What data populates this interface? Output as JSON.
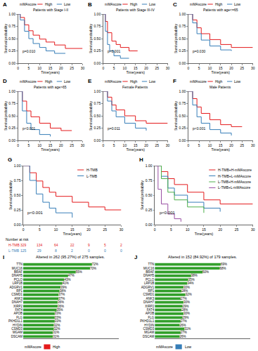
{
  "chart_data": [
    {
      "panel": "A",
      "type": "line",
      "title": "Patients with Stage I-II",
      "x_label": "Time(years)",
      "y_label": "Survival probability",
      "legend_title": "mMAscore",
      "legend": "top",
      "p_value": "p=0.010",
      "grid": false,
      "xlim": [
        0,
        30
      ],
      "xticks": [
        0,
        5,
        10,
        15,
        20,
        25,
        30
      ],
      "ylim": [
        0,
        1
      ],
      "yticks": [
        {
          "value": 0,
          "label": "0.00"
        },
        {
          "value": 0.25,
          "label": "0.25"
        },
        {
          "value": 0.5,
          "label": "0.50"
        },
        {
          "value": 0.75,
          "label": "0.75"
        },
        {
          "value": 1,
          "label": "1.00"
        }
      ],
      "series": [
        {
          "name": "High",
          "color": "#e41a1c",
          "line_style": "step",
          "x": [
            0,
            1,
            3,
            5,
            7,
            10,
            13,
            17,
            22,
            30
          ],
          "values": [
            1,
            0.93,
            0.78,
            0.66,
            0.57,
            0.49,
            0.43,
            0.37,
            0.3,
            0.3
          ]
        },
        {
          "name": "Low",
          "color": "#377eb8",
          "line_style": "step",
          "x": [
            0,
            1,
            3,
            5,
            7,
            10,
            13,
            17,
            22
          ],
          "values": [
            1,
            0.88,
            0.65,
            0.5,
            0.4,
            0.32,
            0.25,
            0.2,
            0.2
          ]
        }
      ]
    },
    {
      "panel": "B",
      "type": "line",
      "title": "Patients with Stage III-IV",
      "x_label": "Time(years)",
      "y_label": "Survival probability",
      "legend_title": "mMAscore",
      "legend": "top",
      "p_value": "p<0.001",
      "grid": false,
      "xlim": [
        0,
        30
      ],
      "xticks": [
        0,
        5,
        10,
        15,
        20,
        25,
        30
      ],
      "ylim": [
        0,
        1
      ],
      "yticks": [
        {
          "value": 0,
          "label": "0.00"
        },
        {
          "value": 0.25,
          "label": "0.25"
        },
        {
          "value": 0.5,
          "label": "0.50"
        },
        {
          "value": 0.75,
          "label": "0.75"
        },
        {
          "value": 1,
          "label": "1.00"
        }
      ],
      "series": [
        {
          "name": "High",
          "color": "#e41a1c",
          "line_style": "step",
          "x": [
            0,
            1,
            2,
            4,
            6,
            8,
            12,
            16
          ],
          "values": [
            1,
            0.85,
            0.62,
            0.45,
            0.38,
            0.32,
            0.25,
            0.25
          ]
        },
        {
          "name": "Low",
          "color": "#377eb8",
          "line_style": "step",
          "x": [
            0,
            1,
            2,
            3,
            5,
            8,
            12
          ],
          "values": [
            1,
            0.65,
            0.38,
            0.25,
            0.15,
            0.1,
            0.1
          ]
        }
      ]
    },
    {
      "panel": "C",
      "type": "line",
      "title": "Patients with age<=65",
      "x_label": "Time(years)",
      "y_label": "Survival probability",
      "legend_title": "mMAscore",
      "legend": "top",
      "p_value": "p=0.030",
      "grid": false,
      "xlim": [
        0,
        30
      ],
      "xticks": [
        0,
        5,
        10,
        15,
        20,
        25,
        30
      ],
      "ylim": [
        0,
        1
      ],
      "yticks": [
        {
          "value": 0,
          "label": "0.00"
        },
        {
          "value": 0.25,
          "label": "0.25"
        },
        {
          "value": 0.5,
          "label": "0.50"
        },
        {
          "value": 0.75,
          "label": "0.75"
        },
        {
          "value": 1,
          "label": "1.00"
        }
      ],
      "series": [
        {
          "name": "High",
          "color": "#e41a1c",
          "line_style": "step",
          "x": [
            0,
            2,
            4,
            6,
            10,
            15,
            20,
            30
          ],
          "values": [
            1,
            0.88,
            0.72,
            0.6,
            0.48,
            0.38,
            0.32,
            0.32
          ]
        },
        {
          "name": "Low",
          "color": "#377eb8",
          "line_style": "step",
          "x": [
            0,
            2,
            4,
            6,
            10,
            15,
            20
          ],
          "values": [
            1,
            0.82,
            0.6,
            0.47,
            0.35,
            0.27,
            0.25
          ]
        }
      ]
    },
    {
      "panel": "D",
      "type": "line",
      "title": "Patients with age>65",
      "x_label": "Time(years)",
      "y_label": "Survival probability",
      "legend_title": "mMAscore",
      "legend": "top",
      "p_value": "p<0.001",
      "grid": false,
      "xlim": [
        0,
        30
      ],
      "xticks": [
        0,
        5,
        10,
        15,
        20,
        25,
        30
      ],
      "ylim": [
        0,
        1
      ],
      "yticks": [
        {
          "value": 0,
          "label": "0.00"
        },
        {
          "value": 0.25,
          "label": "0.25"
        },
        {
          "value": 0.5,
          "label": "0.50"
        },
        {
          "value": 0.75,
          "label": "0.75"
        },
        {
          "value": 1,
          "label": "1.00"
        }
      ],
      "series": [
        {
          "name": "High",
          "color": "#e41a1c",
          "line_style": "step",
          "x": [
            0,
            2,
            4,
            6,
            10,
            15,
            20,
            25
          ],
          "values": [
            1,
            0.8,
            0.6,
            0.48,
            0.35,
            0.25,
            0.2,
            0.2
          ]
        },
        {
          "name": "Low",
          "color": "#377eb8",
          "line_style": "step",
          "x": [
            0,
            2,
            4,
            6,
            10,
            15
          ],
          "values": [
            1,
            0.6,
            0.35,
            0.22,
            0.12,
            0.08
          ]
        }
      ]
    },
    {
      "panel": "E",
      "type": "line",
      "title": "Female Patients",
      "x_label": "Time(years)",
      "y_label": "Survival probability",
      "legend_title": "mMAscore",
      "legend": "top",
      "p_value": "p=0.011",
      "grid": false,
      "xlim": [
        0,
        30
      ],
      "xticks": [
        0,
        5,
        10,
        15,
        20,
        25,
        30
      ],
      "ylim": [
        0,
        1
      ],
      "yticks": [
        {
          "value": 0,
          "label": "0.00"
        },
        {
          "value": 0.25,
          "label": "0.25"
        },
        {
          "value": 0.5,
          "label": "0.50"
        },
        {
          "value": 0.75,
          "label": "0.75"
        },
        {
          "value": 1,
          "label": "1.00"
        }
      ],
      "series": [
        {
          "name": "High",
          "color": "#e41a1c",
          "line_style": "step",
          "x": [
            0,
            2,
            4,
            6,
            10,
            15,
            20,
            30
          ],
          "values": [
            1,
            0.88,
            0.72,
            0.62,
            0.5,
            0.4,
            0.35,
            0.35
          ]
        },
        {
          "name": "Low",
          "color": "#377eb8",
          "line_style": "step",
          "x": [
            0,
            2,
            4,
            6,
            10,
            15,
            20
          ],
          "values": [
            1,
            0.8,
            0.6,
            0.48,
            0.35,
            0.25,
            0.2
          ]
        }
      ]
    },
    {
      "panel": "F",
      "type": "line",
      "title": "Male Patients",
      "x_label": "Time(years)",
      "y_label": "Survival probability",
      "legend_title": "mMAscore",
      "legend": "top",
      "p_value": "p<0.001",
      "grid": false,
      "xlim": [
        0,
        30
      ],
      "xticks": [
        0,
        5,
        10,
        15,
        20,
        25,
        30
      ],
      "ylim": [
        0,
        1
      ],
      "yticks": [
        {
          "value": 0,
          "label": "0.00"
        },
        {
          "value": 0.25,
          "label": "0.25"
        },
        {
          "value": 0.5,
          "label": "0.50"
        },
        {
          "value": 0.75,
          "label": "0.75"
        },
        {
          "value": 1,
          "label": "1.00"
        }
      ],
      "series": [
        {
          "name": "High",
          "color": "#e41a1c",
          "line_style": "step",
          "x": [
            0,
            2,
            4,
            6,
            10,
            15,
            20,
            25
          ],
          "values": [
            1,
            0.85,
            0.68,
            0.55,
            0.42,
            0.32,
            0.28,
            0.28
          ]
        },
        {
          "name": "Low",
          "color": "#377eb8",
          "line_style": "step",
          "x": [
            0,
            2,
            4,
            6,
            10,
            15,
            20
          ],
          "values": [
            1,
            0.72,
            0.48,
            0.35,
            0.22,
            0.15,
            0.1
          ]
        }
      ]
    },
    {
      "panel": "G",
      "type": "line",
      "x_label": "Time(years)",
      "y_label": "Survival probability",
      "legend": "top right",
      "p_value": "p<0.001",
      "grid": false,
      "xlim": [
        0,
        30
      ],
      "xticks": [
        0,
        5,
        10,
        15,
        20,
        25,
        30
      ],
      "ylim": [
        0,
        1
      ],
      "yticks": [
        {
          "value": 0,
          "label": "0.00"
        },
        {
          "value": 0.25,
          "label": "0.25"
        },
        {
          "value": 0.5,
          "label": "0.50"
        },
        {
          "value": 0.75,
          "label": "0.75"
        },
        {
          "value": 1,
          "label": "1.00"
        }
      ],
      "series": [
        {
          "name": "H-TMB",
          "color": "#e41a1c",
          "line_style": "step",
          "x": [
            0,
            2,
            4,
            6,
            8,
            10,
            15,
            20,
            25,
            30
          ],
          "values": [
            1,
            0.88,
            0.74,
            0.63,
            0.55,
            0.48,
            0.38,
            0.3,
            0.25,
            0.25
          ]
        },
        {
          "name": "L-TMB",
          "color": "#377eb8",
          "line_style": "step",
          "x": [
            0,
            2,
            4,
            6,
            8,
            10,
            15
          ],
          "values": [
            1,
            0.75,
            0.52,
            0.38,
            0.28,
            0.2,
            0.12
          ]
        }
      ],
      "risk_table": {
        "title": "Number at risk",
        "times": [
          0,
          5,
          10,
          15,
          20,
          25,
          30
        ],
        "rows": [
          {
            "name": "H-TMB",
            "color": "#e41a1c",
            "values": [
              329,
              134,
              64,
              22,
              9,
              5,
              2
            ]
          },
          {
            "name": "L-TMB",
            "color": "#377eb8",
            "values": [
              125,
              29,
              8,
              2,
              0,
              0,
              0
            ]
          }
        ]
      }
    },
    {
      "panel": "H",
      "type": "line",
      "x_label": "Time(years)",
      "y_label": "Survival probability",
      "legend": "top right",
      "p_value": "p<0.001",
      "grid": false,
      "xlim": [
        0,
        30
      ],
      "xticks": [
        0,
        5,
        10,
        15,
        20,
        25,
        30
      ],
      "ylim": [
        0,
        1
      ],
      "yticks": [
        {
          "value": 0,
          "label": "0.00"
        },
        {
          "value": 0.25,
          "label": "0.25"
        },
        {
          "value": 0.5,
          "label": "0.50"
        },
        {
          "value": 0.75,
          "label": "0.75"
        },
        {
          "value": 1,
          "label": "1.00"
        }
      ],
      "series": [
        {
          "name": "H-TMB+H-mMAscore",
          "color": "#e41a1c",
          "line_style": "step",
          "x": [
            0,
            2,
            4,
            6,
            10,
            15,
            20,
            30
          ],
          "values": [
            1,
            0.9,
            0.78,
            0.68,
            0.55,
            0.42,
            0.35,
            0.35
          ]
        },
        {
          "name": "H-TMB+L-mMAscore",
          "color": "#377eb8",
          "line_style": "step",
          "x": [
            0,
            2,
            4,
            6,
            10,
            15,
            20
          ],
          "values": [
            1,
            0.82,
            0.62,
            0.5,
            0.38,
            0.28,
            0.22
          ]
        },
        {
          "name": "L-TMB+H-mMAscore",
          "color": "#4daf4a",
          "line_style": "step",
          "x": [
            0,
            2,
            4,
            6,
            10,
            15
          ],
          "values": [
            1,
            0.78,
            0.55,
            0.42,
            0.3,
            0.2
          ]
        },
        {
          "name": "L-TMB+L-mMAscore",
          "color": "#984ea3",
          "line_style": "step",
          "x": [
            0,
            1,
            2,
            4,
            6,
            8
          ],
          "values": [
            1,
            0.6,
            0.35,
            0.18,
            0.1,
            0.05
          ]
        }
      ]
    },
    {
      "panel": "I",
      "type": "bar",
      "orientation": "horizontal",
      "title": "Altered in 262 (95.27%) of 275 samples.",
      "data_labels": true,
      "tick_labels": "y",
      "color": "#33a02c",
      "group_title": "mMAscore",
      "group": "High",
      "group_color": "#e41a1c",
      "xlim": [
        0,
        100
      ],
      "xticks": [],
      "categories": [
        "TTN",
        "MUC16",
        "BRAF",
        "DNAH5",
        "PCLO",
        "LRP1B",
        "ADGRV1",
        "RP1",
        "CSMD1",
        "ANK3",
        "DNAH7",
        "XIRP2",
        "FAT4",
        "APOB",
        "FLG",
        "PKHD1L1",
        "HYDIN",
        "CSMD3",
        "MGAM",
        "DSCAM"
      ],
      "values": [
        72,
        70,
        55,
        47,
        43,
        41,
        39,
        38,
        37,
        37,
        36,
        36,
        35,
        33,
        33,
        33,
        32,
        32,
        31,
        31
      ],
      "value_labels": [
        "72%",
        "70%",
        "55%",
        "47%",
        "43%",
        "41%",
        "39%",
        "38%",
        "37%",
        "37%",
        "36%",
        "36%",
        "35%",
        "33%",
        "33%",
        "33%",
        "32%",
        "32%",
        "31%",
        "31%"
      ]
    },
    {
      "panel": "J",
      "type": "bar",
      "orientation": "horizontal",
      "title": "Altered in 152 (84.92%) of 179 samples.",
      "data_labels": true,
      "tick_labels": "y",
      "color": "#33a02c",
      "group_title": "mMAscore",
      "group": "Low",
      "group_color": "#377eb8",
      "xlim": [
        0,
        100
      ],
      "xticks": [],
      "categories": [
        "TTN",
        "MUC16",
        "BRAF",
        "DNAH5",
        "PCLO",
        "LRP1B",
        "ADGRV1",
        "RP1",
        "CSMD1",
        "ANK3",
        "DNAH7",
        "XIRP2",
        "FAT4",
        "APOB",
        "FLG",
        "PKHD1L1",
        "HYDIN",
        "CSMD3",
        "MGAM",
        "DSCAM"
      ],
      "values": [
        69,
        68,
        50,
        38,
        35,
        34,
        30,
        28,
        32,
        27,
        30,
        29,
        28,
        30,
        29,
        27,
        26,
        31,
        27,
        26
      ],
      "value_labels": [
        "69%",
        "68%",
        "50%",
        "38%",
        "35%",
        "34%",
        "30%",
        "28%",
        "32%",
        "27%",
        "30%",
        "29%",
        "28%",
        "30%",
        "29%",
        "27%",
        "26%",
        "31%",
        "27%",
        "26%"
      ]
    }
  ]
}
